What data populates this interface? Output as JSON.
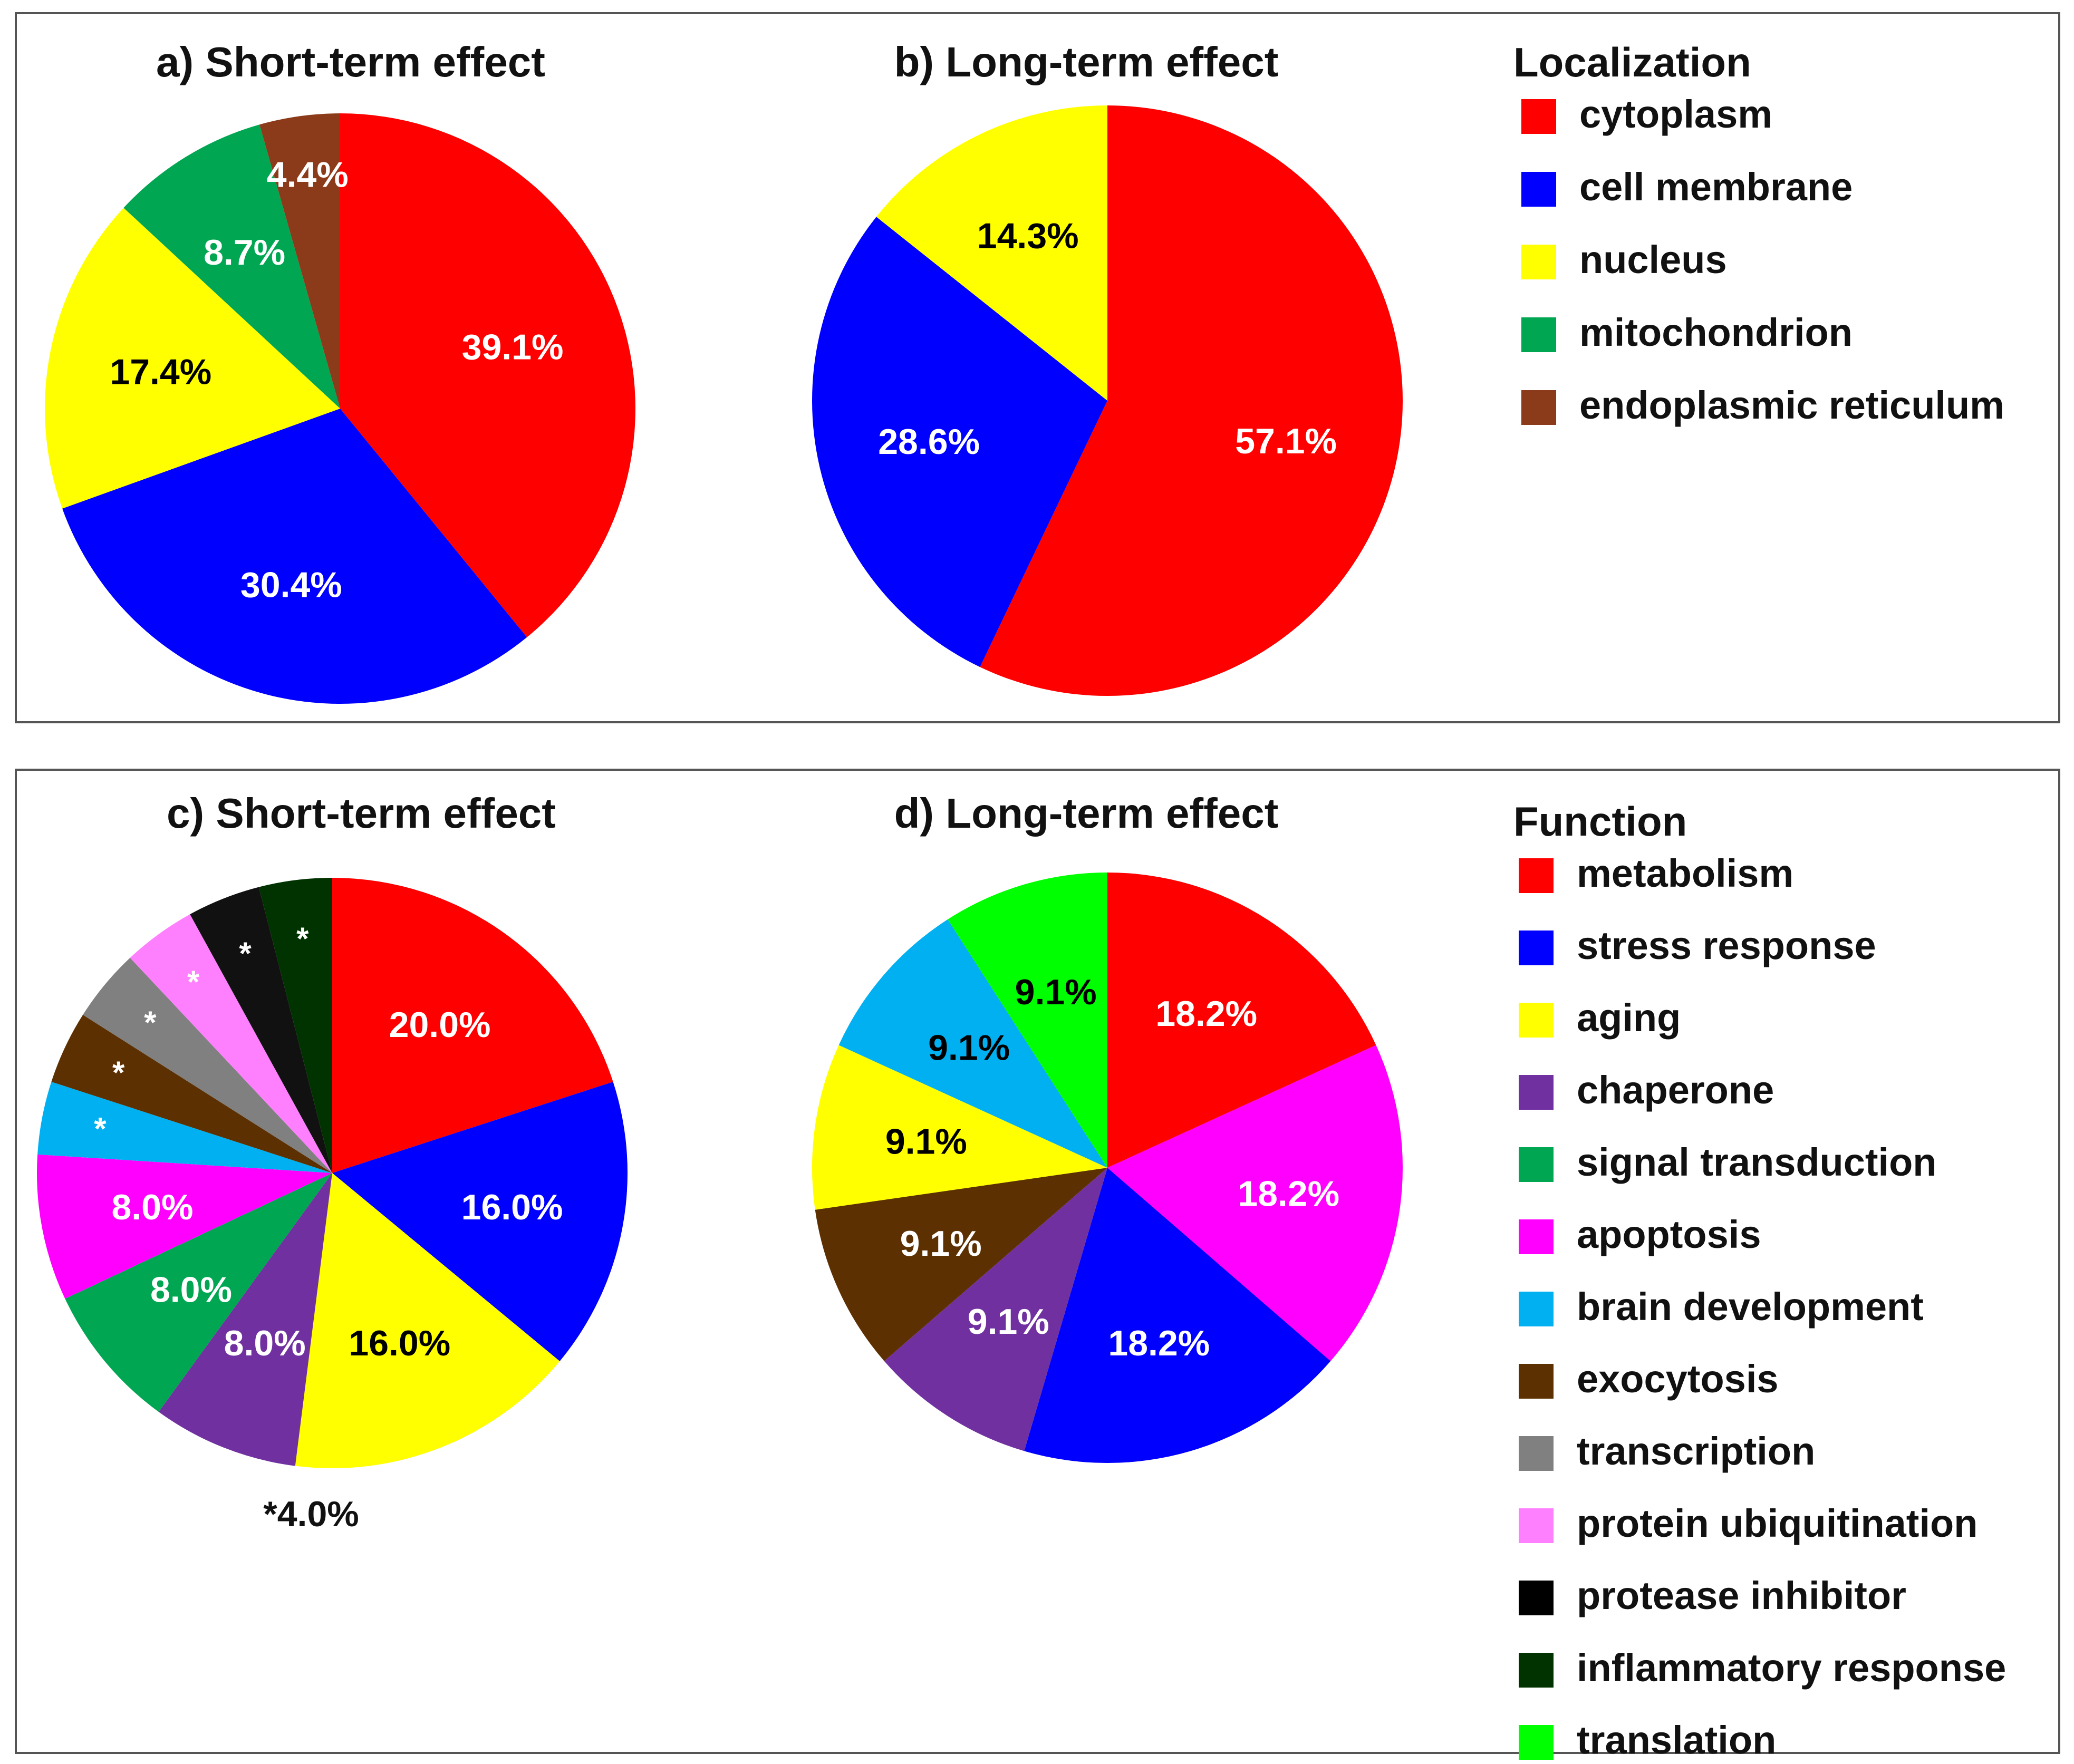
{
  "figure": {
    "panels": [
      {
        "id": "a",
        "title": "a) Short-term effect"
      },
      {
        "id": "b",
        "title": "b) Long-term effect"
      },
      {
        "id": "c",
        "title": "c) Short-term effect",
        "footnote": "*4.0%"
      },
      {
        "id": "d",
        "title": "d) Long-term effect"
      }
    ]
  },
  "legends": {
    "localization": {
      "title": "Localization",
      "items": [
        {
          "label": "cytoplasm",
          "color": "#ff0000"
        },
        {
          "label": "cell membrane",
          "color": "#0000ff"
        },
        {
          "label": "nucleus",
          "color": "#ffff00"
        },
        {
          "label": "mitochondrion",
          "color": "#00a651"
        },
        {
          "label": "endoplasmic reticulum",
          "color": "#8b3a1a"
        }
      ]
    },
    "function": {
      "title": "Function",
      "items": [
        {
          "label": "metabolism",
          "color": "#ff0000"
        },
        {
          "label": "stress response",
          "color": "#0000ff"
        },
        {
          "label": "aging",
          "color": "#ffff00"
        },
        {
          "label": "chaperone",
          "color": "#7030a0"
        },
        {
          "label": "signal transduction",
          "color": "#00a651"
        },
        {
          "label": "apoptosis",
          "color": "#ff00ff"
        },
        {
          "label": "brain development",
          "color": "#00b0f0"
        },
        {
          "label": "exocytosis",
          "color": "#5c3000"
        },
        {
          "label": "transcription",
          "color": "#808080"
        },
        {
          "label": "protein ubiquitination",
          "color": "#ff80ff"
        },
        {
          "label": "protease inhibitor",
          "color": "#000000"
        },
        {
          "label": "inflammatory response",
          "color": "#003300"
        },
        {
          "label": "translation",
          "color": "#00ff00"
        }
      ]
    }
  },
  "chart_data": [
    {
      "type": "pie",
      "title": "a) Short-term effect",
      "slices": [
        {
          "category": "cytoplasm",
          "value": 39.1,
          "label": "39.1%",
          "color": "#ff0000",
          "label_color": "#ffffff"
        },
        {
          "category": "cell membrane",
          "value": 30.4,
          "label": "30.4%",
          "color": "#0000ff",
          "label_color": "#ffffff"
        },
        {
          "category": "nucleus",
          "value": 17.4,
          "label": "17.4%",
          "color": "#ffff00",
          "label_color": "#000000"
        },
        {
          "category": "mitochondrion",
          "value": 8.7,
          "label": "8.7%",
          "color": "#00a651",
          "label_color": "#ffffff"
        },
        {
          "category": "endoplasmic reticulum",
          "value": 4.4,
          "label": "4.4%",
          "color": "#8b3a1a",
          "label_color": "#ffffff"
        }
      ]
    },
    {
      "type": "pie",
      "title": "b) Long-term effect",
      "slices": [
        {
          "category": "cytoplasm",
          "value": 57.1,
          "label": "57.1%",
          "color": "#ff0000",
          "label_color": "#ffffff"
        },
        {
          "category": "cell membrane",
          "value": 28.6,
          "label": "28.6%",
          "color": "#0000ff",
          "label_color": "#ffffff"
        },
        {
          "category": "nucleus",
          "value": 14.3,
          "label": "14.3%",
          "color": "#ffff00",
          "label_color": "#000000"
        }
      ]
    },
    {
      "type": "pie",
      "title": "c) Short-term effect",
      "slices": [
        {
          "category": "metabolism",
          "value": 20.0,
          "label": "20.0%",
          "color": "#ff0000",
          "label_color": "#ffffff"
        },
        {
          "category": "stress response",
          "value": 16.0,
          "label": "16.0%",
          "color": "#0000ff",
          "label_color": "#ffffff"
        },
        {
          "category": "aging",
          "value": 16.0,
          "label": "16.0%",
          "color": "#ffff00",
          "label_color": "#000000"
        },
        {
          "category": "chaperone",
          "value": 8.0,
          "label": "8.0%",
          "color": "#7030a0",
          "label_color": "#ffffff"
        },
        {
          "category": "signal transduction",
          "value": 8.0,
          "label": "8.0%",
          "color": "#00a651",
          "label_color": "#ffffff"
        },
        {
          "category": "apoptosis",
          "value": 8.0,
          "label": "8.0%",
          "color": "#ff00ff",
          "label_color": "#ffffff"
        },
        {
          "category": "brain development",
          "value": 4.0,
          "label": "*",
          "color": "#00b0f0",
          "label_color": "#ffffff"
        },
        {
          "category": "exocytosis",
          "value": 4.0,
          "label": "*",
          "color": "#5c3000",
          "label_color": "#ffffff"
        },
        {
          "category": "transcription",
          "value": 4.0,
          "label": "*",
          "color": "#808080",
          "label_color": "#ffffff"
        },
        {
          "category": "protein ubiquitination",
          "value": 4.0,
          "label": "*",
          "color": "#ff80ff",
          "label_color": "#ffffff"
        },
        {
          "category": "protease inhibitor",
          "value": 4.0,
          "label": "*",
          "color": "#111111",
          "label_color": "#ffffff"
        },
        {
          "category": "inflammatory response",
          "value": 4.0,
          "label": "*",
          "color": "#003300",
          "label_color": "#ffffff"
        }
      ]
    },
    {
      "type": "pie",
      "title": "d) Long-term effect",
      "slices": [
        {
          "category": "metabolism",
          "value": 18.2,
          "label": "18.2%",
          "color": "#ff0000",
          "label_color": "#ffffff"
        },
        {
          "category": "apoptosis",
          "value": 18.2,
          "label": "18.2%",
          "color": "#ff00ff",
          "label_color": "#ffffff"
        },
        {
          "category": "stress response",
          "value": 18.2,
          "label": "18.2%",
          "color": "#0000ff",
          "label_color": "#ffffff"
        },
        {
          "category": "chaperone",
          "value": 9.1,
          "label": "9.1%",
          "color": "#7030a0",
          "label_color": "#ffffff"
        },
        {
          "category": "exocytosis",
          "value": 9.1,
          "label": "9.1%",
          "color": "#5c3000",
          "label_color": "#ffffff"
        },
        {
          "category": "aging",
          "value": 9.1,
          "label": "9.1%",
          "color": "#ffff00",
          "label_color": "#000000"
        },
        {
          "category": "brain development",
          "value": 9.1,
          "label": "9.1%",
          "color": "#00b0f0",
          "label_color": "#000000"
        },
        {
          "category": "translation",
          "value": 9.1,
          "label": "9.1%",
          "color": "#00ff00",
          "label_color": "#000000"
        }
      ]
    }
  ]
}
